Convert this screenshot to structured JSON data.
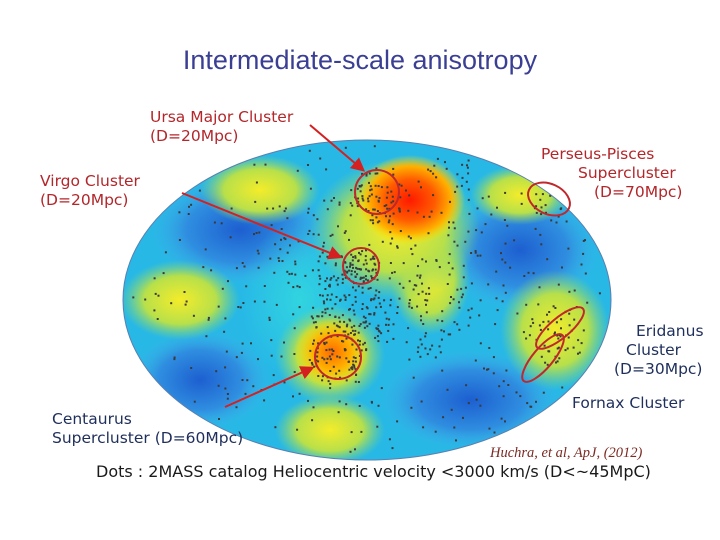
{
  "title": "Intermediate-scale anisotropy",
  "labels": {
    "ursa_major": [
      "Ursa Major Cluster",
      "(D=20Mpc)"
    ],
    "virgo": [
      "Virgo Cluster",
      "(D=20Mpc)"
    ],
    "perseus": [
      "Perseus-Pisces",
      "Supercluster",
      "(D=70Mpc)"
    ],
    "eridanus": [
      "Eridanus",
      "Cluster",
      "(D=30Mpc)"
    ],
    "fornax": "Fornax Cluster",
    "centaurus": [
      "Centaurus",
      "Supercluster (D=60Mpc)"
    ]
  },
  "citation": "Huchra, et al, ApJ, (2012)",
  "caption": "Dots : 2MASS catalog Heliocentric velocity <3000 km/s (D<~45MpC)",
  "colors": {
    "title": "#3b3f94",
    "label_red": "#b3262a",
    "label_navy": "#1f2f5c",
    "arrow": "#d42020",
    "circle": "#c0282c"
  }
}
